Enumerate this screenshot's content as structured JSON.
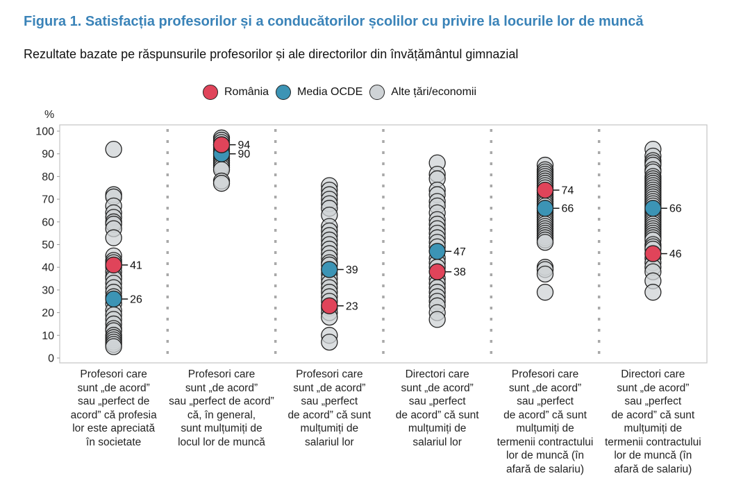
{
  "title": "Figura 1. Satisfacția profesorilor și a conducătorilor școlilor cu privire la locurile lor de muncă",
  "subtitle": "Rezultate bazate pe răspunsurile profesorilor și ale directorilor din învățământul gimnazial",
  "legend": [
    {
      "label": "România",
      "color": "#e0445a"
    },
    {
      "label": "Media OCDE",
      "color": "#3c94b5"
    },
    {
      "label": "Alte țări/economii",
      "color": "#cfd3d6"
    }
  ],
  "chart_data": {
    "type": "scatter",
    "ylabel": "%",
    "ylim": [
      0,
      100
    ],
    "yticks": [
      0,
      10,
      20,
      30,
      40,
      50,
      60,
      70,
      80,
      90,
      100
    ],
    "categories": [
      [
        "Profesori care",
        "sunt „de acord”",
        "sau „perfect de",
        "acord” că profesia",
        "lor este apreciată",
        "în societate"
      ],
      [
        "Profesori care",
        "sunt „de acord”",
        "sau „perfect de acord”",
        "că, în general,",
        "sunt mulțumiți de",
        "locul lor de muncă"
      ],
      [
        "Profesori care",
        "sunt „de acord”",
        "sau „perfect",
        "de acord” că sunt",
        "mulțumiți de",
        "salariul lor"
      ],
      [
        "Directori care",
        "sunt „de acord”",
        "sau „perfect",
        "de acord” că sunt",
        "mulțumiți de",
        "salariul lor"
      ],
      [
        "Profesori care",
        "sunt „de acord”",
        "sau „perfect",
        "de acord” că sunt",
        "mulțumiți de",
        "termenii contractului",
        "lor de muncă (în",
        "afară de salariu)"
      ],
      [
        "Directori care",
        "sunt „de acord”",
        "sau „perfect",
        "de acord” că sunt",
        "mulțumiți de",
        "termenii contractului",
        "lor de muncă (în",
        "afară de salariu)"
      ]
    ],
    "series": [
      {
        "name": "România",
        "values": [
          41,
          94,
          23,
          38,
          74,
          46
        ],
        "labels": [
          "41",
          "94",
          "23",
          "38",
          "74",
          "46"
        ]
      },
      {
        "name": "Media OCDE",
        "values": [
          26,
          90,
          39,
          47,
          66,
          66
        ],
        "labels": [
          "26",
          "90",
          "39",
          "47",
          "66",
          "66"
        ]
      },
      {
        "name": "Alte țări/economii",
        "values": [
          [
            92,
            72,
            71,
            67,
            64,
            62,
            60,
            59,
            57,
            53,
            45,
            43,
            42,
            40,
            38,
            36,
            35,
            33,
            31,
            29,
            27,
            24,
            21,
            19,
            17,
            15,
            13,
            12,
            10,
            9,
            8,
            7,
            6,
            5
          ],
          [
            97,
            96,
            95,
            94,
            93,
            92,
            91,
            89,
            88,
            87,
            86,
            85,
            84,
            83,
            78,
            77
          ],
          [
            76,
            74,
            72,
            70,
            68,
            66,
            63,
            58,
            56,
            54,
            52,
            50,
            48,
            46,
            44,
            42,
            41,
            37,
            35,
            33,
            31,
            29,
            27,
            25,
            22,
            20,
            18,
            10,
            7
          ],
          [
            86,
            81,
            79,
            74,
            72,
            69,
            67,
            64,
            61,
            59,
            57,
            55,
            53,
            51,
            49,
            44,
            42,
            40,
            35,
            33,
            31,
            29,
            27,
            25,
            23,
            20,
            17
          ],
          [
            85,
            83,
            82,
            81,
            80,
            79,
            78,
            77,
            76,
            75,
            73,
            72,
            71,
            70,
            69,
            68,
            67,
            65,
            64,
            63,
            62,
            61,
            60,
            59,
            58,
            57,
            56,
            55,
            54,
            53,
            52,
            51,
            40,
            39,
            37,
            29
          ],
          [
            92,
            89,
            87,
            86,
            85,
            83,
            82,
            80,
            79,
            78,
            77,
            76,
            75,
            74,
            73,
            72,
            71,
            70,
            69,
            68,
            67,
            65,
            64,
            63,
            62,
            61,
            60,
            59,
            58,
            57,
            56,
            55,
            54,
            53,
            52,
            50,
            49,
            48,
            44,
            42,
            40,
            38,
            34,
            29
          ]
        ]
      }
    ],
    "grid": false,
    "legend_position": "top"
  }
}
